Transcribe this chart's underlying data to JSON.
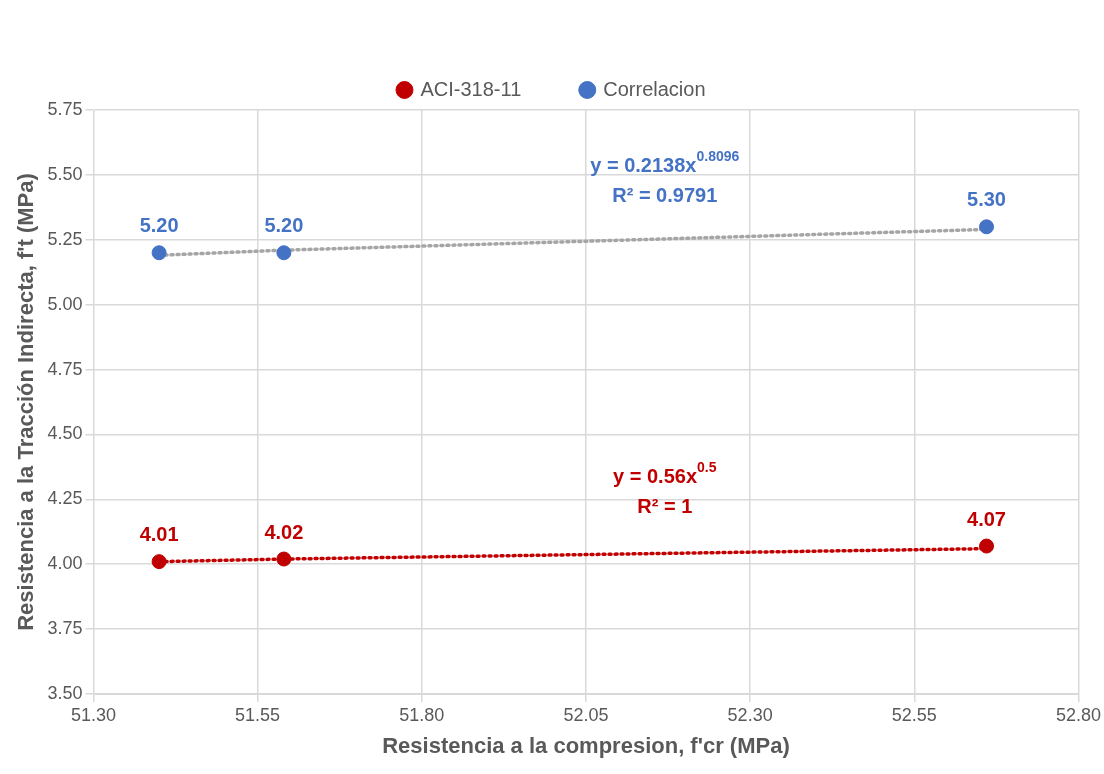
{
  "chart_data": {
    "type": "scatter",
    "xlabel": "Resistencia a la compresion, f'cr (MPa)",
    "ylabel": "Resistencia a la Tracción Indirecta, f't (MPa)",
    "x": [
      51.4,
      51.59,
      52.66
    ],
    "series": [
      {
        "name": "ACI-318-11",
        "color": "#c00000",
        "values": [
          4.01,
          4.02,
          4.07
        ],
        "value_labels": [
          "4.01",
          "4.02",
          "4.07"
        ]
      },
      {
        "name": "Correlacion",
        "color": "#4472c4",
        "values": [
          5.2,
          5.2,
          5.3
        ],
        "value_labels": [
          "5.20",
          "5.20",
          "5.30"
        ]
      },
      {
        "type": "line",
        "color": "#c00000",
        "line_style": "dotted",
        "marker": "none",
        "values": [
          4.01,
          4.02,
          4.06
        ]
      },
      {
        "type": "line",
        "color": "#a5a5a5",
        "line_style": "dotted",
        "marker": "none",
        "values": [
          5.19,
          5.21,
          5.29
        ]
      }
    ],
    "marker": "circle",
    "legend": "top",
    "grid": true,
    "xlim": [
      51.3,
      52.8
    ],
    "xticks": [
      {
        "value": 51.3,
        "label": "51.30"
      },
      {
        "value": 51.55,
        "label": "51.55"
      },
      {
        "value": 51.8,
        "label": "51.80"
      },
      {
        "value": 52.05,
        "label": "52.05"
      },
      {
        "value": 52.3,
        "label": "52.30"
      },
      {
        "value": 52.55,
        "label": "52.55"
      },
      {
        "value": 52.8,
        "label": "52.80"
      }
    ],
    "ylim": [
      3.5,
      5.75
    ],
    "yticks": [
      {
        "value": 3.5,
        "label": "3.50"
      },
      {
        "value": 3.75,
        "label": "3.75"
      },
      {
        "value": 4,
        "label": "4.00"
      },
      {
        "value": 4.25,
        "label": "4.25"
      },
      {
        "value": 4.5,
        "label": "4.50"
      },
      {
        "value": 4.75,
        "label": "4.75"
      },
      {
        "value": 5,
        "label": "5.00"
      },
      {
        "value": 5.25,
        "label": "5.25"
      },
      {
        "value": 5.5,
        "label": "5.50"
      },
      {
        "value": 5.75,
        "label": "5.75"
      }
    ],
    "annotations": [
      "y = 0.2138x$^{0.8096}$",
      "R² = 0.9791",
      "y = 0.56x$^{0.5}$",
      "R² = 1"
    ]
  }
}
